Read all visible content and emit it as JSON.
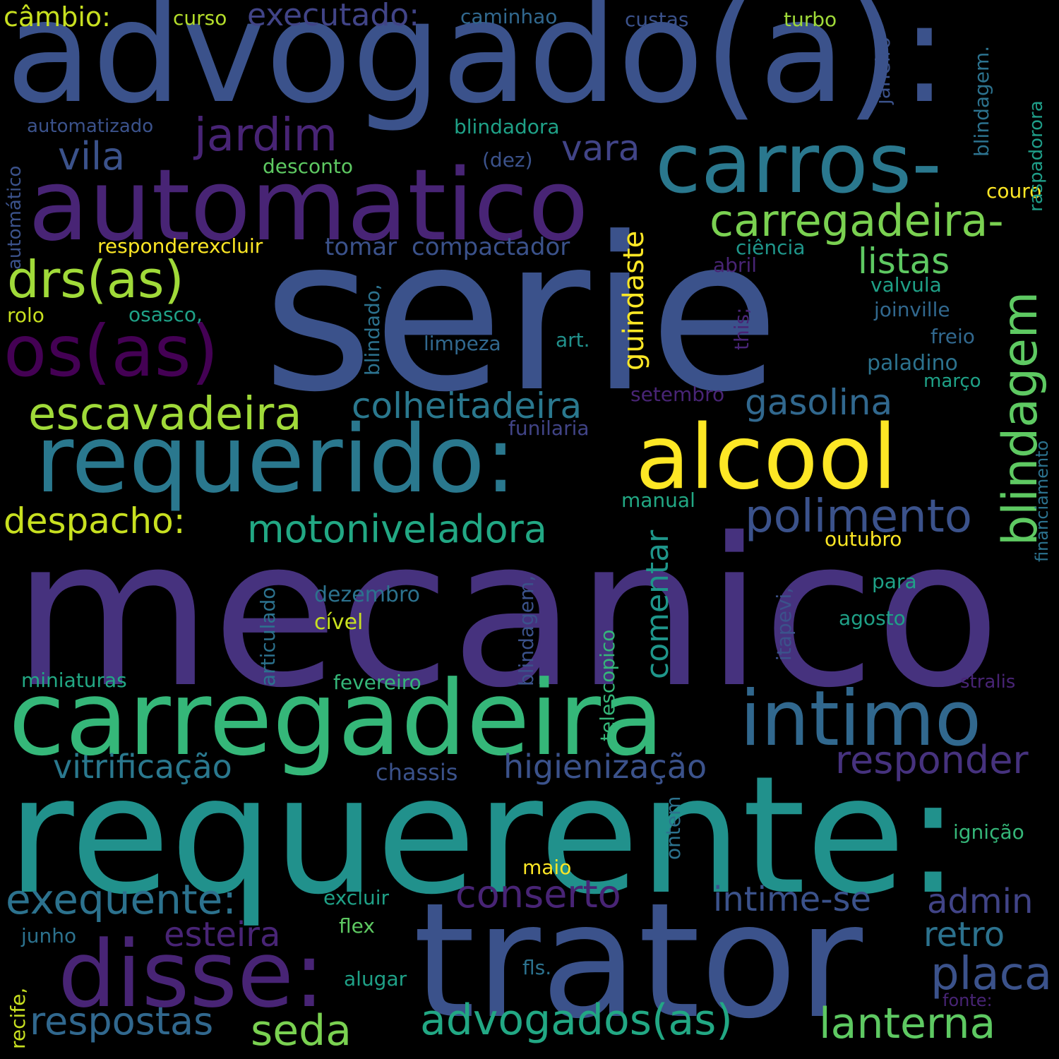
{
  "colors": {
    "background": "#000000",
    "palette": [
      "#440154",
      "#46327e",
      "#365c8d",
      "#277f8e",
      "#1fa187",
      "#4ac16d",
      "#a0da39",
      "#fde725"
    ]
  },
  "words": [
    {
      "text": "advogado(a):",
      "color": "#3b528b"
    },
    {
      "text": "serie",
      "color": "#3b528b"
    },
    {
      "text": "mecanico",
      "color": "#46327e"
    },
    {
      "text": "requerente:",
      "color": "#21918c"
    },
    {
      "text": "trator",
      "color": "#3b528b"
    },
    {
      "text": "automatico",
      "color": "#482475"
    },
    {
      "text": "carros-",
      "color": "#2a788e"
    },
    {
      "text": "carregadeira",
      "color": "#35b779"
    },
    {
      "text": "requerido:",
      "color": "#2a788e"
    },
    {
      "text": "alcool",
      "color": "#fde725"
    },
    {
      "text": "disse:",
      "color": "#482475"
    },
    {
      "text": "intimo",
      "color": "#31688e"
    },
    {
      "text": "os(as)",
      "color": "#440154"
    },
    {
      "text": "drs(as)",
      "color": "#a0da39"
    },
    {
      "text": "jardim",
      "color": "#482475"
    },
    {
      "text": "vila",
      "color": "#3b528b"
    },
    {
      "text": "vara",
      "color": "#414487"
    },
    {
      "text": "carregadeira-",
      "color": "#7ad151"
    },
    {
      "text": "listas",
      "color": "#5ec962"
    },
    {
      "text": "blindagem",
      "color": "#5ec962"
    },
    {
      "text": "escavadeira",
      "color": "#a0da39"
    },
    {
      "text": "colheitadeira",
      "color": "#2a788e"
    },
    {
      "text": "gasolina",
      "color": "#31688e"
    },
    {
      "text": "guindaste",
      "color": "#fde725"
    },
    {
      "text": "polimento",
      "color": "#3b528b"
    },
    {
      "text": "motoniveladora",
      "color": "#22a884"
    },
    {
      "text": "despacho:",
      "color": "#c8e020"
    },
    {
      "text": "comentar",
      "color": "#1f968b"
    },
    {
      "text": "vitrificação",
      "color": "#2a788e"
    },
    {
      "text": "higienização",
      "color": "#3b528b"
    },
    {
      "text": "responder",
      "color": "#46327e"
    },
    {
      "text": "exequente:",
      "color": "#2c728e"
    },
    {
      "text": "conserto",
      "color": "#482475"
    },
    {
      "text": "intime-se",
      "color": "#3b528b"
    },
    {
      "text": "admin",
      "color": "#414487"
    },
    {
      "text": "esteira",
      "color": "#482475"
    },
    {
      "text": "retro",
      "color": "#2c728e"
    },
    {
      "text": "placa",
      "color": "#3b528b"
    },
    {
      "text": "respostas",
      "color": "#31688e"
    },
    {
      "text": "seda",
      "color": "#7ad151"
    },
    {
      "text": "advogados(as)",
      "color": "#22a884"
    },
    {
      "text": "lanterna",
      "color": "#5ec962"
    },
    {
      "text": "executado:",
      "color": "#414487"
    },
    {
      "text": "câmbio:",
      "color": "#c8e020"
    },
    {
      "text": "curso",
      "color": "#b5de2b"
    },
    {
      "text": "caminhao",
      "color": "#31688e"
    },
    {
      "text": "custas",
      "color": "#3b528b"
    },
    {
      "text": "turbo",
      "color": "#a0da39"
    },
    {
      "text": "janeiro",
      "color": "#3b528b"
    },
    {
      "text": "blindagem.",
      "color": "#2c728e"
    },
    {
      "text": "raspadorora",
      "color": "#1f9e89"
    },
    {
      "text": "automatizado",
      "color": "#3b528b"
    },
    {
      "text": "blindadora",
      "color": "#1fa187"
    },
    {
      "text": "desconto",
      "color": "#5ec962"
    },
    {
      "text": "(dez)",
      "color": "#3b528b"
    },
    {
      "text": "couro",
      "color": "#fde725"
    },
    {
      "text": "automático",
      "color": "#3b528b"
    },
    {
      "text": "responderexcluir",
      "color": "#fde725"
    },
    {
      "text": "tomar",
      "color": "#3b528b"
    },
    {
      "text": "compactador",
      "color": "#3b528b"
    },
    {
      "text": "ciência",
      "color": "#1f968b"
    },
    {
      "text": "abril",
      "color": "#482475"
    },
    {
      "text": "valvula",
      "color": "#1fa187"
    },
    {
      "text": "rolo",
      "color": "#c8e020"
    },
    {
      "text": "osasco,",
      "color": "#1fa187"
    },
    {
      "text": "blindado,",
      "color": "#2c728e"
    },
    {
      "text": "this;",
      "color": "#482475"
    },
    {
      "text": "joinville",
      "color": "#31688e"
    },
    {
      "text": "freio",
      "color": "#31688e"
    },
    {
      "text": "limpeza",
      "color": "#31688e"
    },
    {
      "text": "art.",
      "color": "#21918c"
    },
    {
      "text": "paladino",
      "color": "#2c728e"
    },
    {
      "text": "financiamento",
      "color": "#2c728e"
    },
    {
      "text": "março",
      "color": "#1fa187"
    },
    {
      "text": "setembro",
      "color": "#482475"
    },
    {
      "text": "funilaria",
      "color": "#414487"
    },
    {
      "text": "manual",
      "color": "#22a884"
    },
    {
      "text": "outubro",
      "color": "#fde725"
    },
    {
      "text": "articulado",
      "color": "#2c728e"
    },
    {
      "text": "blindagem,",
      "color": "#3b528b"
    },
    {
      "text": "dezembro",
      "color": "#2c728e"
    },
    {
      "text": "cível",
      "color": "#c8e020"
    },
    {
      "text": "itapevi,",
      "color": "#3b528b"
    },
    {
      "text": "para",
      "color": "#1fa187"
    },
    {
      "text": "agosto",
      "color": "#1fa187"
    },
    {
      "text": "telescopico",
      "color": "#35b779"
    },
    {
      "text": "miniaturas",
      "color": "#22a884"
    },
    {
      "text": "fevereiro",
      "color": "#35b779"
    },
    {
      "text": "stralis",
      "color": "#482475"
    },
    {
      "text": "chassis",
      "color": "#3b528b"
    },
    {
      "text": "ignição",
      "color": "#35b779"
    },
    {
      "text": "ontem",
      "color": "#2c728e"
    },
    {
      "text": "maio",
      "color": "#fde725"
    },
    {
      "text": "excluir",
      "color": "#1fa187"
    },
    {
      "text": "junho",
      "color": "#2c728e"
    },
    {
      "text": "flex",
      "color": "#5ec962"
    },
    {
      "text": "recife,",
      "color": "#c8e020"
    },
    {
      "text": "alugar",
      "color": "#1fa187"
    },
    {
      "text": "fls.",
      "color": "#2c728e"
    },
    {
      "text": "fonte:",
      "color": "#482475"
    }
  ]
}
